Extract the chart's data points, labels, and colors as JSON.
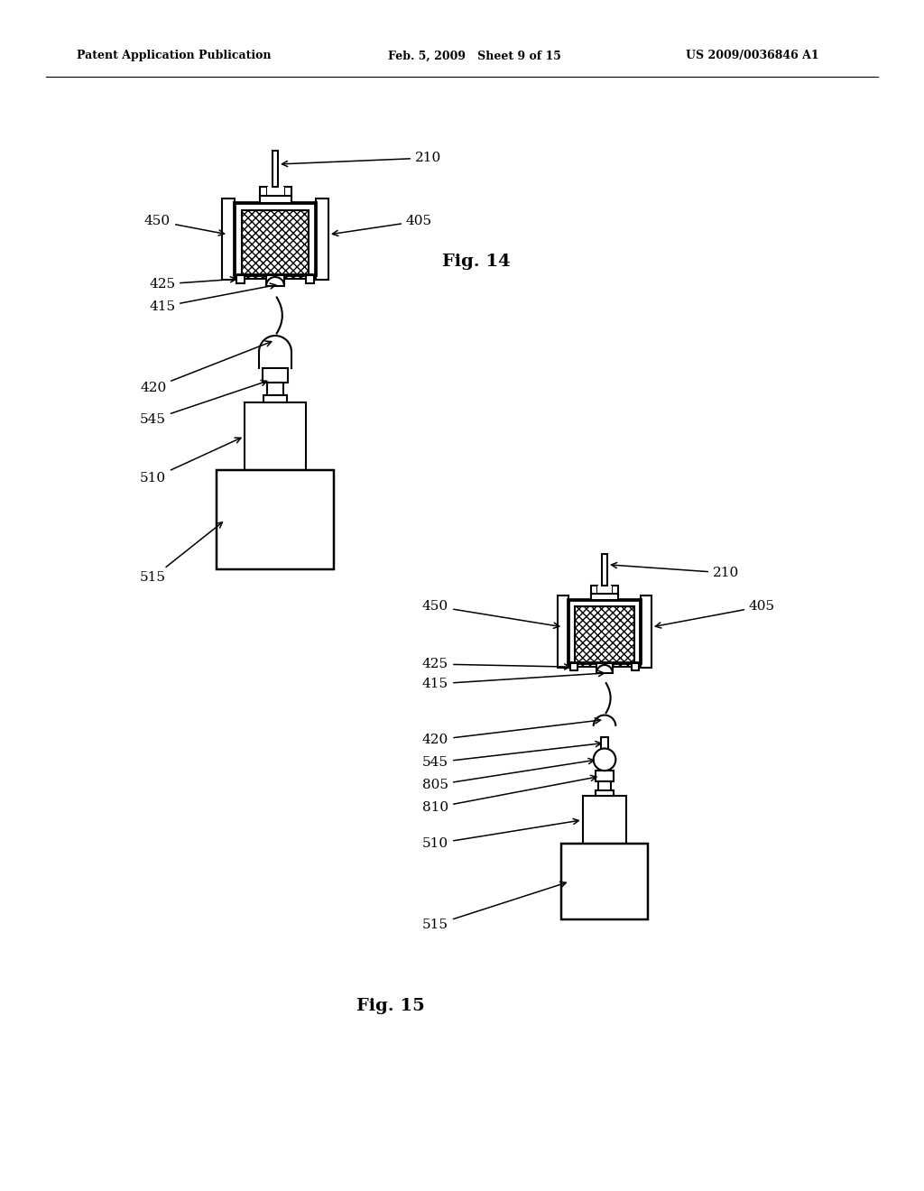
{
  "background_color": "#ffffff",
  "header_left": "Patent Application Publication",
  "header_center": "Feb. 5, 2009   Sheet 9 of 15",
  "header_right": "US 2009/0036846 A1",
  "fig14_label": "Fig. 14",
  "fig15_label": "Fig. 15",
  "line_color": "#000000"
}
